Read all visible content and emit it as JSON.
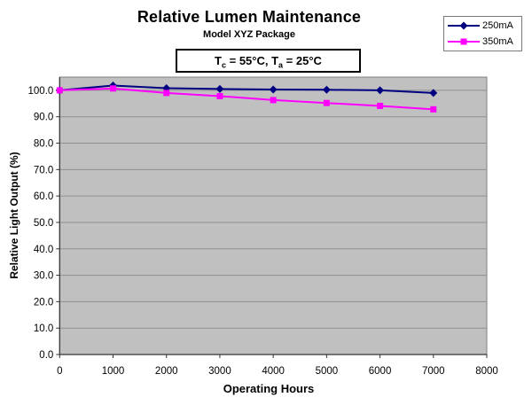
{
  "chart": {
    "title": "Relative Lumen Maintenance",
    "subtitle": "Model XYZ Package",
    "condition": {
      "p1": "T",
      "p1_sub": "c",
      "p2": " = 55°C, T",
      "p2_sub": "a",
      "p3": " = 25°C"
    }
  },
  "chart_data": {
    "type": "line",
    "title": "Relative Lumen Maintenance",
    "subtitle": "Model XYZ Package",
    "annotation": "Tc = 55°C, Ta = 25°C",
    "xlabel": "Operating Hours",
    "ylabel": "Relative Light Output (%)",
    "x": [
      0,
      1000,
      2000,
      3000,
      4000,
      5000,
      6000,
      7000
    ],
    "series": [
      {
        "name": "250mA",
        "color": "#000080",
        "marker": "diamond",
        "values": [
          100.0,
          101.8,
          100.8,
          100.5,
          100.3,
          100.2,
          100.0,
          99.0
        ]
      },
      {
        "name": "350mA",
        "color": "#FF00FF",
        "marker": "square",
        "values": [
          100.0,
          100.7,
          99.0,
          97.8,
          96.3,
          95.2,
          94.1,
          92.8
        ]
      }
    ],
    "xlim": [
      0,
      8000
    ],
    "ylim": [
      0,
      105
    ],
    "x_ticks": [
      "0",
      "1000",
      "2000",
      "3000",
      "4000",
      "5000",
      "6000",
      "7000",
      "8000"
    ],
    "y_ticks": [
      "0.0",
      "10.0",
      "20.0",
      "30.0",
      "40.0",
      "50.0",
      "60.0",
      "70.0",
      "80.0",
      "90.0",
      "100.0"
    ],
    "grid": "horizontal",
    "legend_position": "top-right",
    "plot_bg": "#C0C0C0",
    "plot_border": "#7f7f7f",
    "gridline_color": "#8f8f8f",
    "axis_color": "#333333"
  }
}
